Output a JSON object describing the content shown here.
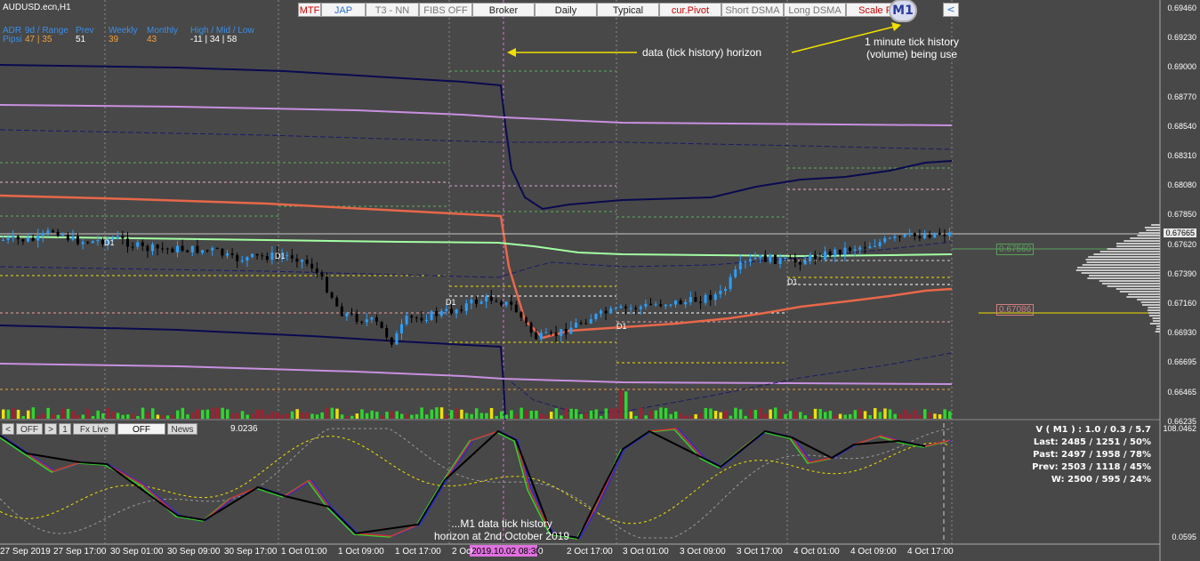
{
  "symbol": "AUDUSD.ecn,H1",
  "toolbar": [
    {
      "label": "MTF",
      "color": "#d00000",
      "w": 26
    },
    {
      "label": "JAP",
      "color": "#2a6fd6",
      "w": 50
    },
    {
      "label": "T3 - NN",
      "color": "#777777",
      "w": 60
    },
    {
      "label": "FIBS OFF",
      "color": "#777777",
      "w": 60
    },
    {
      "label": "Broker",
      "color": "#222222",
      "w": 70
    },
    {
      "label": "Daily",
      "color": "#222222",
      "w": 70
    },
    {
      "label": "Typical",
      "color": "#222222",
      "w": 70
    },
    {
      "label": "cur.Pivot",
      "color": "#d00000",
      "w": 70
    },
    {
      "label": "Short DSMA",
      "color": "#777777",
      "w": 70
    },
    {
      "label": "Long DSMA",
      "color": "#777777",
      "w": 70
    },
    {
      "label": "Scale Fi",
      "color": "#d00000",
      "w": 68
    }
  ],
  "toolbar_tail": {
    "nav": "<",
    "m1_badge": "M1"
  },
  "stats": {
    "headers": [
      "ADR",
      "9d / Range",
      "Prev",
      "Weekly",
      "Monthly",
      "High / Mid / Low"
    ],
    "row_label": "Pipsi",
    "values": [
      "47 | 35",
      "51",
      "39",
      "43",
      "-11 | 34 | 58"
    ]
  },
  "annotations": {
    "horizon_label": "data (tick history) horizon",
    "m1_note": "1 minute tick history\n(volume) being use",
    "bottom_note": "...M1 data tick history\nhorizon at 2nd October 2019"
  },
  "price_axis": [
    "0.69460",
    "0.69230",
    "0.69000",
    "0.68770",
    "0.68540",
    "0.68310",
    "0.68080",
    "0.67850",
    "0.67620",
    "0.67390",
    "0.67160",
    "0.66930",
    "0.66695",
    "0.66465",
    "0.66235"
  ],
  "current_price": "0.67665",
  "poc_labels": [
    "0.67560",
    "0.67086"
  ],
  "d1_labels": [
    "D1",
    "D1",
    "D1",
    "D1",
    "D1"
  ],
  "time_axis": [
    "27 Sep 2019",
    "27 Sep 17:00",
    "30 Sep 01:00",
    "30 Sep 09:00",
    "30 Sep 17:00",
    "1 Oct 01:00",
    "1 Oct 09:00",
    "1 Oct 17:00",
    "2 Oct",
    "2 Oct 17:00",
    "3 Oct 01:00",
    "3 Oct 09:00",
    "3 Oct 17:00",
    "4 Oct 01:00",
    "4 Oct 09:00",
    "4 Oct 17:00"
  ],
  "time_cursor": "2019.10.02 08:30",
  "time_cursor_tail": "0",
  "sub_buttons": [
    {
      "label": "<",
      "w": 14
    },
    {
      "label": "OFF",
      "w": 30
    },
    {
      "label": ">",
      "w": 14
    },
    {
      "label": "1",
      "w": 14
    },
    {
      "label": "Fx Live",
      "w": 48
    },
    {
      "label": "OFF",
      "w": 54
    },
    {
      "label": "News",
      "w": 34
    }
  ],
  "sub_value": "9.0236",
  "sub_axis_top": "108.0462",
  "sub_axis_bottom": "0.0595",
  "sub_stats": [
    "V ( M1 ) : 1.0 / 0.3 / 5.7",
    "Last: 2485 / 1251 / 50%",
    "Past: 2497 / 1958 / 78%",
    "Prev: 2503 / 1118 / 45%",
    "W: 2500 / 595 / 24%"
  ],
  "colors": {
    "bg": "#484848",
    "bull": "#2aa0ff",
    "bear": "#000000",
    "navy": "#0a0a50",
    "orange": "#e8674a",
    "lavender": "#c890e0",
    "mint": "#a4ffa4",
    "vol_green": "#2ed62e",
    "vol_red": "#a02030",
    "pink": "#e070e0",
    "yellow": "#f0e000"
  }
}
